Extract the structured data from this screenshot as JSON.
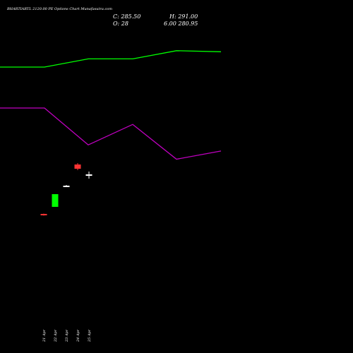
{
  "header": {
    "title": "BHARTIARTL 2120.00  PE Options  Chart Munafasutra.com",
    "close_text": "C: 285.50",
    "high_text": "H: 291.00",
    "open_text": "O: 28",
    "low_text": "6.00  280.95"
  },
  "colors": {
    "background": "#000000",
    "upper_line": "#00ff00",
    "lower_line": "#c000c0",
    "bull_candle": "#00ff00",
    "bear_candle": "#ff3333",
    "neutral_candle": "#ffffff",
    "text": "#ffffff"
  },
  "chart_data": {
    "type": "line",
    "title": "BHARTIARTL 2120.00  PE Options  Chart Munafasutra.com",
    "categories": [
      "21 Apr",
      "22 Apr",
      "23 Apr",
      "24 Apr",
      "25 Apr",
      "28 Apr"
    ],
    "series": [
      {
        "color": "#00ff00",
        "values": [
          100,
          100,
          104,
          104,
          108,
          107.5
        ]
      },
      {
        "color": "#c000c0",
        "values": [
          80,
          80,
          62,
          72,
          55,
          59
        ]
      }
    ],
    "candles": [
      {
        "date": "21 Apr",
        "open": 1.0,
        "close": 0.9,
        "high": 1.02,
        "low": 0.88,
        "direction": "down"
      },
      {
        "date": "22 Apr",
        "open": 1.5,
        "close": 2.4,
        "high": 2.4,
        "low": 1.5,
        "direction": "up"
      },
      {
        "date": "23 Apr",
        "open": 3.0,
        "close": 3.0,
        "high": 3.05,
        "low": 2.95,
        "direction": "flat"
      },
      {
        "date": "24 Apr",
        "open": 4.5,
        "close": 4.2,
        "high": 4.6,
        "low": 4.1,
        "direction": "down"
      },
      {
        "date": "25 Apr",
        "open": 3.8,
        "close": 3.8,
        "high": 4.0,
        "low": 3.5,
        "direction": "flat"
      }
    ],
    "tick_labels": [
      "21 Apr",
      "22 Apr",
      "23 Apr",
      "24 Apr",
      "25 Apr"
    ]
  }
}
